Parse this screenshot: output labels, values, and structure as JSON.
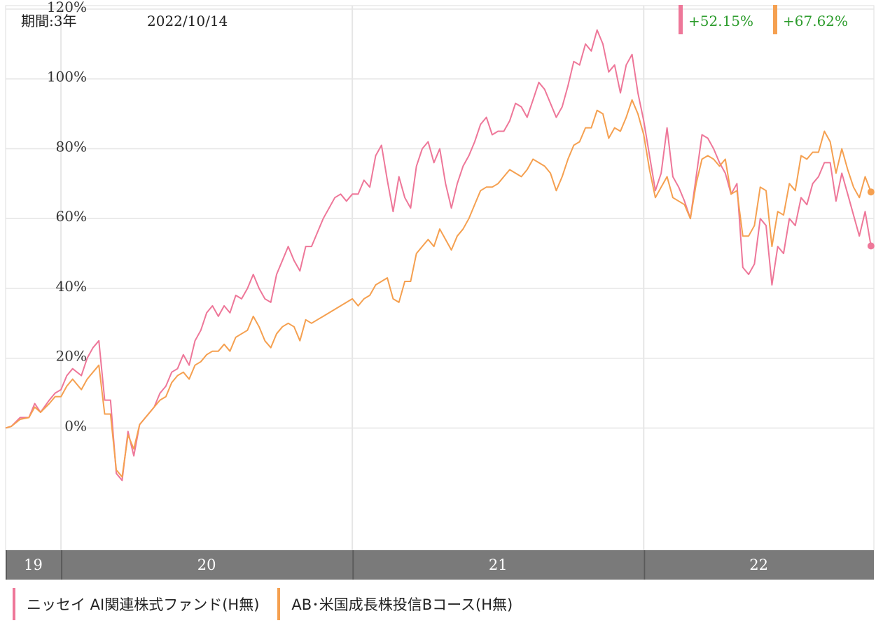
{
  "header": {
    "period": "期間:3年",
    "date": "2022/10/14"
  },
  "returns": [
    {
      "value": "+52.15%",
      "color": "#ee7799"
    },
    {
      "value": "+67.62%",
      "color": "#f5a050"
    }
  ],
  "colors": {
    "pink": "#ee7799",
    "orange": "#f5a050",
    "grid": "#e6e6e6",
    "year_bar": "#7a7a7a",
    "positive": "#2c9c2c"
  },
  "legend": [
    {
      "label": "ニッセイ AI関連株式ファンド(H無)",
      "color": "#ee7799"
    },
    {
      "label": "AB･米国成長株投信Bコース(H無)",
      "color": "#f5a050"
    }
  ],
  "chart_data": {
    "type": "line",
    "x_unit": "year",
    "xlim": [
      2019.81,
      2022.79
    ],
    "ylim": [
      -35,
      121
    ],
    "y_ticks": [
      0,
      20,
      40,
      60,
      80,
      100,
      120
    ],
    "y_tick_labels": [
      "0%",
      "20%",
      "40%",
      "60%",
      "80%",
      "100%",
      "120%"
    ],
    "year_labels": [
      {
        "label": "19",
        "start": 2019.81,
        "end": 2020.0
      },
      {
        "label": "20",
        "start": 2020.0,
        "end": 2021.0
      },
      {
        "label": "21",
        "start": 2021.0,
        "end": 2022.0
      },
      {
        "label": "22",
        "start": 2022.0,
        "end": 2022.79
      }
    ],
    "grid": true,
    "series": [
      {
        "name": "ニッセイ AI関連株式ファンド(H無)",
        "color": "#ee7799",
        "points": [
          [
            2019.81,
            0
          ],
          [
            2019.83,
            0.5
          ],
          [
            2019.86,
            3
          ],
          [
            2019.89,
            3
          ],
          [
            2019.91,
            7
          ],
          [
            2019.93,
            4.5
          ],
          [
            2019.96,
            8
          ],
          [
            2019.98,
            10
          ],
          [
            2020.0,
            11
          ],
          [
            2020.02,
            15
          ],
          [
            2020.04,
            17
          ],
          [
            2020.07,
            15
          ],
          [
            2020.09,
            20
          ],
          [
            2020.11,
            23
          ],
          [
            2020.13,
            25
          ],
          [
            2020.15,
            8
          ],
          [
            2020.17,
            8
          ],
          [
            2020.19,
            -13
          ],
          [
            2020.21,
            -15
          ],
          [
            2020.23,
            -1
          ],
          [
            2020.25,
            -8
          ],
          [
            2020.27,
            1
          ],
          [
            2020.3,
            4
          ],
          [
            2020.32,
            6
          ],
          [
            2020.34,
            10
          ],
          [
            2020.36,
            12
          ],
          [
            2020.38,
            16
          ],
          [
            2020.4,
            17
          ],
          [
            2020.42,
            21
          ],
          [
            2020.44,
            18
          ],
          [
            2020.46,
            25
          ],
          [
            2020.48,
            28
          ],
          [
            2020.5,
            33
          ],
          [
            2020.52,
            35
          ],
          [
            2020.54,
            32
          ],
          [
            2020.56,
            35
          ],
          [
            2020.58,
            33
          ],
          [
            2020.6,
            38
          ],
          [
            2020.62,
            37
          ],
          [
            2020.64,
            40
          ],
          [
            2020.66,
            44
          ],
          [
            2020.68,
            40
          ],
          [
            2020.7,
            37
          ],
          [
            2020.72,
            36
          ],
          [
            2020.74,
            44
          ],
          [
            2020.76,
            48
          ],
          [
            2020.78,
            52
          ],
          [
            2020.8,
            48
          ],
          [
            2020.82,
            45
          ],
          [
            2020.84,
            52
          ],
          [
            2020.86,
            52
          ],
          [
            2020.88,
            56
          ],
          [
            2020.9,
            60
          ],
          [
            2020.92,
            63
          ],
          [
            2020.94,
            66
          ],
          [
            2020.96,
            67
          ],
          [
            2020.98,
            65
          ],
          [
            2021.0,
            67
          ],
          [
            2021.02,
            67
          ],
          [
            2021.04,
            71
          ],
          [
            2021.06,
            69
          ],
          [
            2021.08,
            78
          ],
          [
            2021.1,
            81
          ],
          [
            2021.12,
            71
          ],
          [
            2021.14,
            62
          ],
          [
            2021.16,
            72
          ],
          [
            2021.18,
            66
          ],
          [
            2021.2,
            63
          ],
          [
            2021.22,
            75
          ],
          [
            2021.24,
            80
          ],
          [
            2021.26,
            82
          ],
          [
            2021.28,
            76
          ],
          [
            2021.3,
            80
          ],
          [
            2021.32,
            70
          ],
          [
            2021.34,
            63
          ],
          [
            2021.36,
            70
          ],
          [
            2021.38,
            75
          ],
          [
            2021.4,
            78
          ],
          [
            2021.42,
            82
          ],
          [
            2021.44,
            87
          ],
          [
            2021.46,
            89
          ],
          [
            2021.48,
            84
          ],
          [
            2021.5,
            85
          ],
          [
            2021.52,
            85
          ],
          [
            2021.54,
            88
          ],
          [
            2021.56,
            93
          ],
          [
            2021.58,
            92
          ],
          [
            2021.6,
            89
          ],
          [
            2021.62,
            94
          ],
          [
            2021.64,
            99
          ],
          [
            2021.66,
            97
          ],
          [
            2021.68,
            93
          ],
          [
            2021.7,
            89
          ],
          [
            2021.72,
            92
          ],
          [
            2021.74,
            98
          ],
          [
            2021.76,
            105
          ],
          [
            2021.78,
            104
          ],
          [
            2021.8,
            110
          ],
          [
            2021.82,
            108
          ],
          [
            2021.84,
            114
          ],
          [
            2021.86,
            110
          ],
          [
            2021.88,
            102
          ],
          [
            2021.9,
            104
          ],
          [
            2021.92,
            96
          ],
          [
            2021.94,
            104
          ],
          [
            2021.96,
            107
          ],
          [
            2021.98,
            96
          ],
          [
            2022.0,
            88
          ],
          [
            2022.02,
            78
          ],
          [
            2022.04,
            68
          ],
          [
            2022.06,
            73
          ],
          [
            2022.08,
            86
          ],
          [
            2022.1,
            72
          ],
          [
            2022.12,
            69
          ],
          [
            2022.14,
            65
          ],
          [
            2022.16,
            60
          ],
          [
            2022.18,
            72
          ],
          [
            2022.2,
            84
          ],
          [
            2022.22,
            83
          ],
          [
            2022.24,
            80
          ],
          [
            2022.26,
            76
          ],
          [
            2022.28,
            73
          ],
          [
            2022.3,
            67
          ],
          [
            2022.32,
            70
          ],
          [
            2022.34,
            46
          ],
          [
            2022.36,
            44
          ],
          [
            2022.38,
            47
          ],
          [
            2022.4,
            60
          ],
          [
            2022.42,
            58
          ],
          [
            2022.44,
            41
          ],
          [
            2022.46,
            52
          ],
          [
            2022.48,
            50
          ],
          [
            2022.5,
            60
          ],
          [
            2022.52,
            58
          ],
          [
            2022.54,
            66
          ],
          [
            2022.56,
            64
          ],
          [
            2022.58,
            70
          ],
          [
            2022.6,
            72
          ],
          [
            2022.62,
            76
          ],
          [
            2022.64,
            76
          ],
          [
            2022.66,
            65
          ],
          [
            2022.68,
            73
          ],
          [
            2022.7,
            67
          ],
          [
            2022.72,
            61
          ],
          [
            2022.74,
            55
          ],
          [
            2022.76,
            62
          ],
          [
            2022.78,
            52.15
          ]
        ]
      },
      {
        "name": "AB･米国成長株投信Bコース(H無)",
        "color": "#f5a050",
        "points": [
          [
            2019.81,
            0
          ],
          [
            2019.83,
            0.5
          ],
          [
            2019.86,
            2.5
          ],
          [
            2019.89,
            3
          ],
          [
            2019.91,
            6
          ],
          [
            2019.93,
            4.5
          ],
          [
            2019.96,
            7
          ],
          [
            2019.98,
            9
          ],
          [
            2020.0,
            9
          ],
          [
            2020.02,
            12
          ],
          [
            2020.04,
            14
          ],
          [
            2020.07,
            11
          ],
          [
            2020.09,
            14
          ],
          [
            2020.11,
            16
          ],
          [
            2020.13,
            18
          ],
          [
            2020.15,
            4
          ],
          [
            2020.17,
            4
          ],
          [
            2020.19,
            -12
          ],
          [
            2020.21,
            -14
          ],
          [
            2020.23,
            -2
          ],
          [
            2020.25,
            -6
          ],
          [
            2020.27,
            1
          ],
          [
            2020.3,
            4
          ],
          [
            2020.32,
            6
          ],
          [
            2020.34,
            8
          ],
          [
            2020.36,
            9
          ],
          [
            2020.38,
            13
          ],
          [
            2020.4,
            15
          ],
          [
            2020.42,
            16
          ],
          [
            2020.44,
            14
          ],
          [
            2020.46,
            18
          ],
          [
            2020.48,
            19
          ],
          [
            2020.5,
            21
          ],
          [
            2020.52,
            22
          ],
          [
            2020.54,
            22
          ],
          [
            2020.56,
            24
          ],
          [
            2020.58,
            22
          ],
          [
            2020.6,
            26
          ],
          [
            2020.62,
            27
          ],
          [
            2020.64,
            28
          ],
          [
            2020.66,
            32
          ],
          [
            2020.68,
            29
          ],
          [
            2020.7,
            25
          ],
          [
            2020.72,
            23
          ],
          [
            2020.74,
            27
          ],
          [
            2020.76,
            29
          ],
          [
            2020.78,
            30
          ],
          [
            2020.8,
            29
          ],
          [
            2020.82,
            25
          ],
          [
            2020.84,
            31
          ],
          [
            2020.86,
            30
          ],
          [
            2020.88,
            31
          ],
          [
            2020.9,
            32
          ],
          [
            2020.92,
            33
          ],
          [
            2020.94,
            34
          ],
          [
            2020.96,
            35
          ],
          [
            2020.98,
            36
          ],
          [
            2021.0,
            37
          ],
          [
            2021.02,
            35
          ],
          [
            2021.04,
            37
          ],
          [
            2021.06,
            38
          ],
          [
            2021.08,
            41
          ],
          [
            2021.1,
            42
          ],
          [
            2021.12,
            43
          ],
          [
            2021.14,
            37
          ],
          [
            2021.16,
            36
          ],
          [
            2021.18,
            42
          ],
          [
            2021.2,
            42
          ],
          [
            2021.22,
            50
          ],
          [
            2021.24,
            52
          ],
          [
            2021.26,
            54
          ],
          [
            2021.28,
            52
          ],
          [
            2021.3,
            57
          ],
          [
            2021.32,
            54
          ],
          [
            2021.34,
            51
          ],
          [
            2021.36,
            55
          ],
          [
            2021.38,
            57
          ],
          [
            2021.4,
            60
          ],
          [
            2021.42,
            64
          ],
          [
            2021.44,
            68
          ],
          [
            2021.46,
            69
          ],
          [
            2021.48,
            69
          ],
          [
            2021.5,
            70
          ],
          [
            2021.52,
            72
          ],
          [
            2021.54,
            74
          ],
          [
            2021.56,
            73
          ],
          [
            2021.58,
            72
          ],
          [
            2021.6,
            74
          ],
          [
            2021.62,
            77
          ],
          [
            2021.64,
            76
          ],
          [
            2021.66,
            75
          ],
          [
            2021.68,
            73
          ],
          [
            2021.7,
            68
          ],
          [
            2021.72,
            72
          ],
          [
            2021.74,
            77
          ],
          [
            2021.76,
            81
          ],
          [
            2021.78,
            82
          ],
          [
            2021.8,
            86
          ],
          [
            2021.82,
            86
          ],
          [
            2021.84,
            91
          ],
          [
            2021.86,
            90
          ],
          [
            2021.88,
            83
          ],
          [
            2021.9,
            86
          ],
          [
            2021.92,
            85
          ],
          [
            2021.94,
            89
          ],
          [
            2021.96,
            94
          ],
          [
            2021.98,
            90
          ],
          [
            2022.0,
            84
          ],
          [
            2022.02,
            74
          ],
          [
            2022.04,
            66
          ],
          [
            2022.06,
            69
          ],
          [
            2022.08,
            72
          ],
          [
            2022.1,
            66
          ],
          [
            2022.12,
            65
          ],
          [
            2022.14,
            64
          ],
          [
            2022.16,
            60
          ],
          [
            2022.18,
            70
          ],
          [
            2022.2,
            77
          ],
          [
            2022.22,
            78
          ],
          [
            2022.24,
            77
          ],
          [
            2022.26,
            75
          ],
          [
            2022.28,
            77
          ],
          [
            2022.3,
            67
          ],
          [
            2022.32,
            68
          ],
          [
            2022.34,
            55
          ],
          [
            2022.36,
            55
          ],
          [
            2022.38,
            58
          ],
          [
            2022.4,
            69
          ],
          [
            2022.42,
            68
          ],
          [
            2022.44,
            52
          ],
          [
            2022.46,
            62
          ],
          [
            2022.48,
            61
          ],
          [
            2022.5,
            70
          ],
          [
            2022.52,
            68
          ],
          [
            2022.54,
            78
          ],
          [
            2022.56,
            77
          ],
          [
            2022.58,
            79
          ],
          [
            2022.6,
            79
          ],
          [
            2022.62,
            85
          ],
          [
            2022.64,
            82
          ],
          [
            2022.66,
            73
          ],
          [
            2022.68,
            80
          ],
          [
            2022.7,
            74
          ],
          [
            2022.72,
            69
          ],
          [
            2022.74,
            66
          ],
          [
            2022.76,
            72
          ],
          [
            2022.78,
            67.62
          ]
        ]
      }
    ]
  }
}
